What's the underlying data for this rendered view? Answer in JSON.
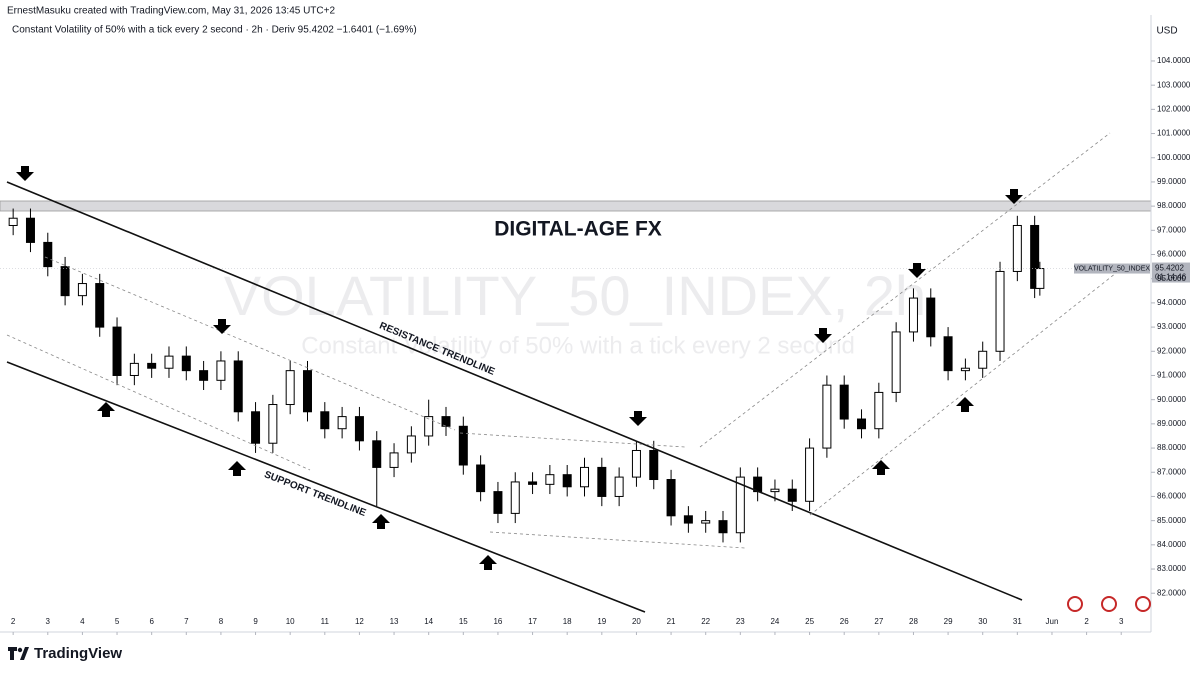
{
  "chart_data": {
    "type": "candlestick",
    "header": "ErnestMasuku created with TradingView.com, May 31, 2026 13:45 UTC+2",
    "legend": "Constant Volatility of 50% with a tick every 2 second · 2h · Deriv  95.4202  −1.6401 (−1.69%)",
    "watermark": "VOLATILITY_50_INDEX, 2h",
    "watermark_sub": "Constant Volatility of 50% with a tick every 2 second",
    "title": "DIGITAL-AGE FX",
    "annotations": [
      "RESISTANCE TRENDLINE",
      "SUPPORT TRENDLINE"
    ],
    "currency": "USD",
    "price_tag": {
      "name": "VOLATILITY_50_INDEX",
      "value": 95.4202,
      "countdown": "01:14:46"
    },
    "brand": "TradingView",
    "x": [
      2,
      2.5,
      3,
      3.5,
      4,
      4.5,
      5,
      5.5,
      6,
      6.5,
      7,
      7.5,
      8,
      8.5,
      9,
      9.5,
      10,
      10.5,
      11,
      11.5,
      12,
      12.5,
      13,
      13.5,
      14,
      14.5,
      15,
      15.5,
      16,
      16.5,
      17,
      17.5,
      18,
      18.5,
      19,
      19.5,
      20,
      20.5,
      21,
      21.5,
      22,
      22.5,
      23,
      23.5,
      24,
      24.5,
      25,
      25.5,
      26,
      26.5,
      27,
      27.5,
      28,
      28.5,
      29,
      29.5,
      30,
      30.5,
      31,
      31.5,
      31.65
    ],
    "open": [
      97.2,
      97.5,
      96.5,
      95.5,
      94.3,
      94.8,
      93,
      91,
      91.5,
      91.3,
      91.8,
      91.2,
      90.8,
      91.6,
      89.5,
      88.2,
      89.8,
      91.2,
      89.5,
      88.8,
      89.3,
      88.3,
      87.2,
      87.8,
      88.5,
      89.3,
      88.9,
      87.3,
      86.2,
      85.3,
      86.6,
      86.5,
      86.9,
      86.4,
      87.2,
      86,
      86.8,
      87.9,
      86.7,
      85.2,
      84.9,
      85,
      84.5,
      86.8,
      86.2,
      86.3,
      85.8,
      88,
      90.6,
      89.2,
      88.8,
      90.3,
      92.8,
      94.2,
      92.6,
      91.2,
      91.3,
      92,
      95.3,
      97.2,
      94.6
    ],
    "high": [
      97.9,
      97.9,
      96.9,
      95.9,
      95.2,
      95.2,
      93.4,
      91.9,
      91.9,
      92.2,
      92.2,
      91.6,
      92,
      92,
      89.9,
      90.2,
      91.6,
      91.6,
      89.9,
      89.7,
      89.7,
      88.7,
      88.2,
      88.9,
      90,
      89.7,
      89.3,
      87.7,
      86.6,
      87,
      87,
      87.3,
      87.3,
      87.6,
      87.6,
      87.2,
      88.3,
      88.3,
      87.1,
      85.6,
      85.4,
      85.4,
      87.2,
      87.2,
      86.7,
      86.7,
      88.4,
      91,
      91,
      89.6,
      90.7,
      93.2,
      94.6,
      94.6,
      93,
      91.7,
      92.4,
      95.7,
      97.6,
      97.6,
      95.7
    ],
    "low": [
      96.8,
      96.1,
      95.1,
      93.9,
      93.9,
      92.6,
      90.6,
      90.6,
      90.9,
      90.9,
      90.8,
      90.4,
      90.4,
      89.1,
      87.8,
      87.8,
      89.4,
      89.1,
      88.4,
      88.4,
      87.9,
      85.6,
      86.8,
      87.4,
      88.1,
      88.5,
      86.9,
      85.8,
      84.9,
      84.9,
      86.1,
      86.1,
      86,
      86,
      85.6,
      85.6,
      86.4,
      86.3,
      84.8,
      84.5,
      84.5,
      84.1,
      84.1,
      85.8,
      85.8,
      85.4,
      85.4,
      87.6,
      88.8,
      88.4,
      88.4,
      89.9,
      92.4,
      92.2,
      90.8,
      90.8,
      90.9,
      91.6,
      94.9,
      94.2,
      94.3
    ],
    "close": [
      97.5,
      96.5,
      95.5,
      94.3,
      94.8,
      93,
      91,
      91.5,
      91.3,
      91.8,
      91.2,
      90.8,
      91.6,
      89.5,
      88.2,
      89.8,
      91.2,
      89.5,
      88.8,
      89.3,
      88.3,
      87.2,
      87.8,
      88.5,
      89.3,
      88.9,
      87.3,
      86.2,
      85.3,
      86.6,
      86.5,
      86.9,
      86.4,
      87.2,
      86,
      86.8,
      87.9,
      86.7,
      85.2,
      84.9,
      85,
      84.5,
      86.8,
      86.2,
      86.3,
      85.8,
      88,
      90.6,
      89.2,
      88.8,
      90.3,
      92.8,
      94.2,
      92.6,
      91.2,
      91.3,
      92,
      95.3,
      97.2,
      94.6,
      95.42
    ],
    "xlim": [
      1.62,
      34.86
    ],
    "ylim": [
      81.1,
      105.9
    ],
    "xticks": [
      2,
      3,
      4,
      5,
      6,
      7,
      8,
      9,
      10,
      11,
      12,
      13,
      14,
      15,
      16,
      17,
      18,
      19,
      20,
      21,
      22,
      23,
      24,
      25,
      26,
      27,
      28,
      29,
      30,
      31,
      {
        "value": 32,
        "label": "Jun"
      },
      {
        "value": 33,
        "label": "2"
      },
      {
        "value": 34,
        "label": "3"
      }
    ],
    "yticks": [
      {
        "value": 82,
        "label": "82.0000"
      },
      {
        "value": 83,
        "label": "83.0000"
      },
      {
        "value": 84,
        "label": "84.0000"
      },
      {
        "value": 85,
        "label": "85.0000"
      },
      {
        "value": 86,
        "label": "86.0000"
      },
      {
        "value": 87,
        "label": "87.0000"
      },
      {
        "value": 88,
        "label": "88.0000"
      },
      {
        "value": 89,
        "label": "89.0000"
      },
      {
        "value": 90,
        "label": "90.0000"
      },
      {
        "value": 91,
        "label": "91.0000"
      },
      {
        "value": 92,
        "label": "92.0000"
      },
      {
        "value": 93,
        "label": "93.0000"
      },
      {
        "value": 94,
        "label": "94.0000"
      },
      {
        "value": 95,
        "label": "95.0000"
      },
      {
        "value": 96,
        "label": "96.0000"
      },
      {
        "value": 97,
        "label": "97.0000"
      },
      {
        "value": 98,
        "label": "98.0000"
      },
      {
        "value": 99,
        "label": "99.0000"
      },
      {
        "value": 100,
        "label": "100.0000"
      },
      {
        "value": 101,
        "label": "101.0000"
      },
      {
        "value": 102,
        "label": "102.0000"
      },
      {
        "value": 103,
        "label": "103.0000"
      },
      {
        "value": 104,
        "label": "104.0000"
      }
    ],
    "up_color": "#ffffff",
    "down_color": "#000000"
  }
}
